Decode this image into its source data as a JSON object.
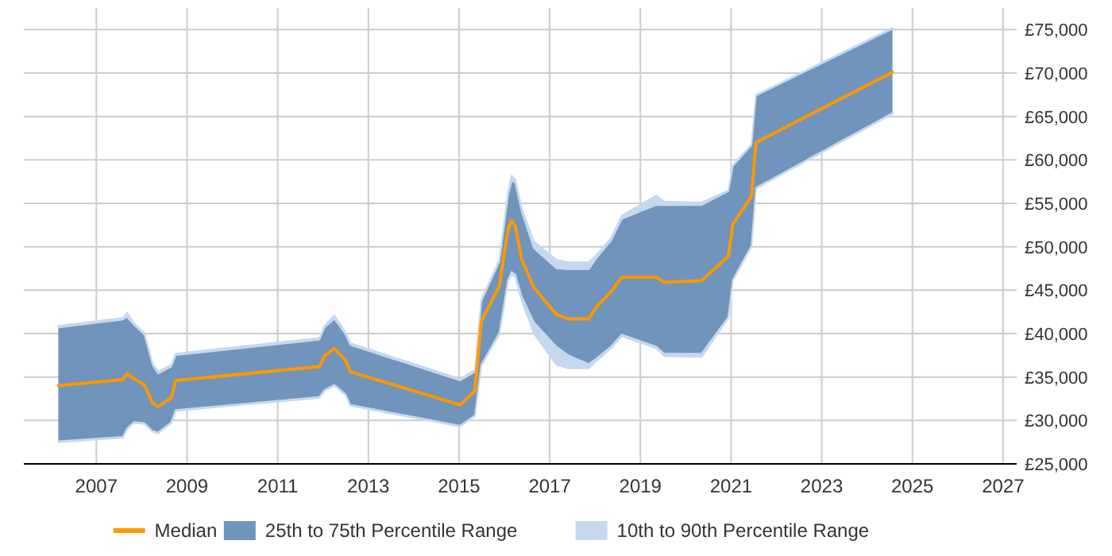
{
  "chart_data": {
    "type": "line",
    "xlim": [
      2005.4,
      2027.3
    ],
    "ylim": [
      25000,
      77500
    ],
    "xticks": [
      2007,
      2009,
      2011,
      2013,
      2015,
      2017,
      2019,
      2021,
      2023,
      2025,
      2027
    ],
    "yticks": [
      {
        "value": 25000,
        "label": "£25,000"
      },
      {
        "value": 30000,
        "label": "£30,000"
      },
      {
        "value": 35000,
        "label": "£35,000"
      },
      {
        "value": 40000,
        "label": "£40,000"
      },
      {
        "value": 45000,
        "label": "£45,000"
      },
      {
        "value": 50000,
        "label": "£50,000"
      },
      {
        "value": 55000,
        "label": "£55,000"
      },
      {
        "value": 60000,
        "label": "£60,000"
      },
      {
        "value": 65000,
        "label": "£65,000"
      },
      {
        "value": 70000,
        "label": "£70,000"
      },
      {
        "value": 75000,
        "label": "£75,000"
      }
    ],
    "grid": true,
    "legend": "bottom",
    "x": [
      2006.16,
      2007.58,
      2007.68,
      2007.83,
      2008.06,
      2008.24,
      2008.36,
      2008.65,
      2008.75,
      2011.92,
      2012.03,
      2012.25,
      2012.5,
      2012.6,
      2015.02,
      2015.35,
      2015.49,
      2015.89,
      2016.08,
      2016.16,
      2016.24,
      2016.38,
      2016.65,
      2017.15,
      2017.41,
      2017.86,
      2018.02,
      2018.35,
      2018.59,
      2019.35,
      2019.53,
      2020.35,
      2020.94,
      2021.04,
      2021.45,
      2021.55,
      2024.56
    ],
    "series": [
      {
        "name": "Median",
        "color": "#ff9900",
        "values": [
          34000,
          34700,
          35400,
          34800,
          34100,
          32000,
          31600,
          32600,
          34600,
          36200,
          37400,
          38300,
          36900,
          35600,
          31800,
          33400,
          41400,
          45500,
          52000,
          53000,
          52400,
          48600,
          45300,
          42200,
          41700,
          41700,
          43000,
          44800,
          46500,
          46500,
          45900,
          46100,
          48900,
          52600,
          55800,
          62000,
          70100
        ]
      },
      {
        "name": "25th to 75th Percentile Range",
        "color": "#7094bc",
        "values": [
          null,
          null,
          null,
          null,
          null,
          null,
          null,
          null,
          null,
          null,
          null,
          null,
          null,
          null,
          null,
          null,
          null,
          null,
          null,
          null,
          null,
          null,
          null,
          null,
          null,
          null,
          null,
          null,
          null,
          null,
          null,
          null,
          null,
          null,
          null,
          null,
          null
        ],
        "lower": [
          27600,
          28100,
          29100,
          29800,
          29700,
          28800,
          28600,
          29800,
          31200,
          32700,
          33500,
          34100,
          33000,
          31800,
          29400,
          30600,
          36400,
          40100,
          46200,
          47100,
          46800,
          44300,
          41300,
          38500,
          37500,
          36500,
          37100,
          38500,
          39900,
          38500,
          37700,
          37700,
          41900,
          46200,
          50100,
          56800,
          65400
        ],
        "upper": [
          40700,
          41600,
          41900,
          41000,
          39900,
          36400,
          35400,
          36200,
          37500,
          39300,
          40700,
          41700,
          39900,
          38700,
          34600,
          35600,
          43700,
          48300,
          55900,
          57600,
          57400,
          54100,
          49800,
          47500,
          47400,
          47400,
          48600,
          50700,
          53200,
          54800,
          54800,
          54800,
          56400,
          59300,
          61700,
          67400,
          75100
        ]
      },
      {
        "name": "10th to 90th Percentile Range",
        "color": "#c6d8ee",
        "values": [
          null,
          null,
          null,
          null,
          null,
          null,
          null,
          null,
          null,
          null,
          null,
          null,
          null,
          null,
          null,
          null,
          null,
          null,
          null,
          null,
          null,
          null,
          null,
          null,
          null,
          null,
          null,
          null,
          null,
          null,
          null,
          null,
          null,
          null,
          null,
          null,
          null
        ],
        "lower": [
          27500,
          28000,
          29000,
          29700,
          29600,
          28700,
          28500,
          29700,
          31100,
          32600,
          33400,
          34000,
          32900,
          31700,
          29300,
          30500,
          36300,
          39900,
          46000,
          46900,
          46500,
          43800,
          40000,
          36400,
          36000,
          36000,
          36800,
          38300,
          39700,
          38300,
          37400,
          37300,
          41800,
          46100,
          50000,
          56700,
          65300
        ],
        "upper": [
          40900,
          41800,
          42400,
          41200,
          40100,
          36600,
          35600,
          36400,
          37700,
          39500,
          40900,
          42100,
          40100,
          38900,
          34800,
          35800,
          43900,
          48500,
          56300,
          58200,
          57800,
          54500,
          50600,
          48500,
          48200,
          48200,
          49000,
          51000,
          53600,
          55900,
          55200,
          55100,
          56500,
          59400,
          61800,
          67500,
          75200
        ]
      }
    ]
  }
}
